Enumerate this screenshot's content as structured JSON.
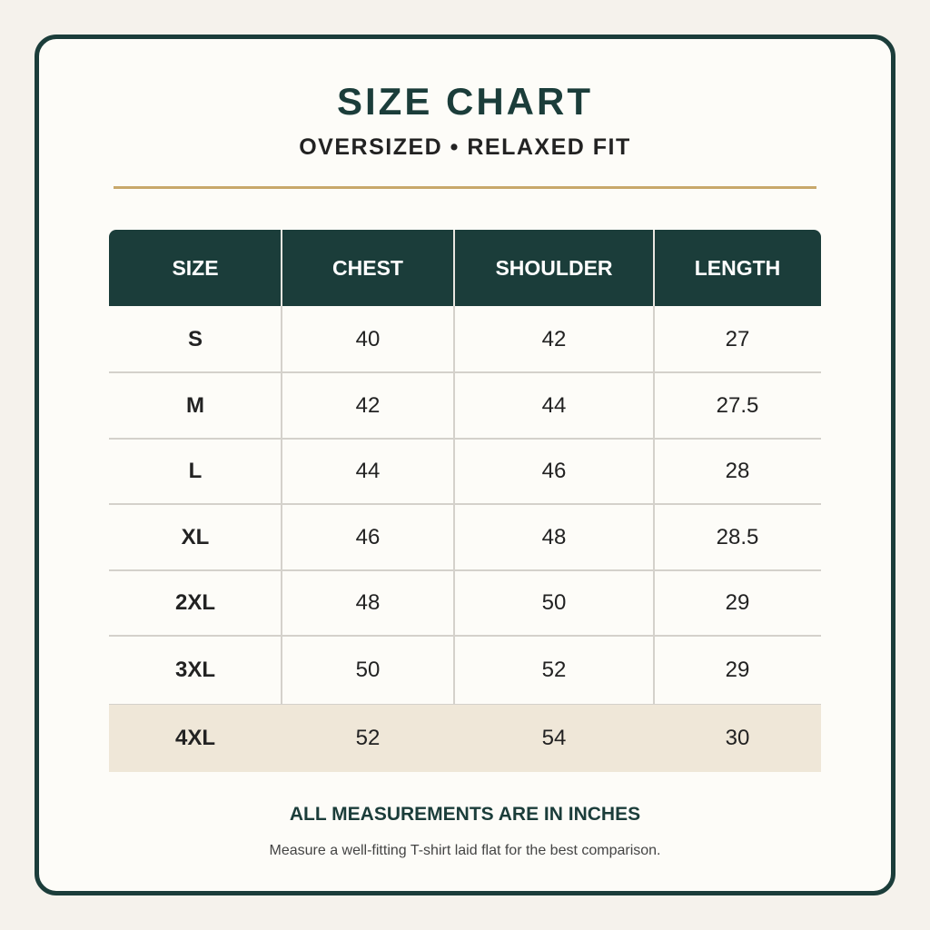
{
  "header": {
    "title": "SIZE CHART",
    "subtitle": "OVERSIZED • RELAXED FIT"
  },
  "table": {
    "columns": [
      "SIZE",
      "CHEST",
      "SHOULDER",
      "LENGTH"
    ],
    "rows": [
      [
        "S",
        40,
        42,
        27
      ],
      [
        "M",
        42,
        44,
        27.5
      ],
      [
        "L",
        44,
        46,
        28
      ],
      [
        "XL",
        46,
        48,
        28.5
      ],
      [
        "2XL",
        48,
        50,
        29
      ],
      [
        "3XL",
        50,
        52,
        29
      ],
      [
        "4XL",
        52,
        54,
        30
      ]
    ]
  },
  "footer": {
    "note": "ALL MEASUREMENTS ARE IN INCHES",
    "detail": "Measure a well-fitting T-shirt laid flat for the best comparison."
  }
}
